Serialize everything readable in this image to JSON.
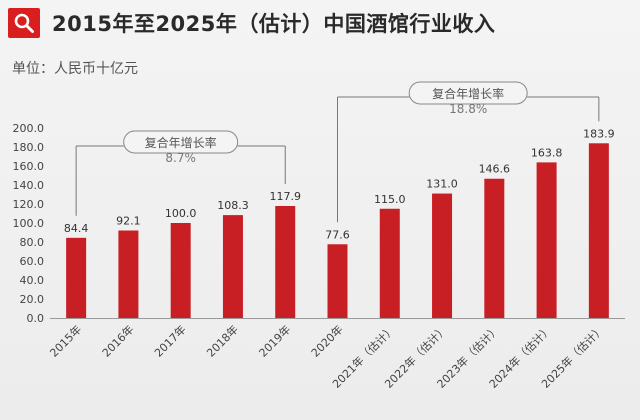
{
  "title": "2015年至2025年（估计）中国酒馆行业收入",
  "unit_label": "单位：人民币十亿元",
  "icons": {
    "logo": "search-icon"
  },
  "colors": {
    "bar": "#c81f25",
    "logo": "#d81e1e"
  },
  "cagr": [
    {
      "label": "复合年增长率",
      "value": "8.7%",
      "from_index": 0,
      "to_index": 4
    },
    {
      "label": "复合年增长率",
      "value": "18.8%",
      "from_index": 5,
      "to_index": 10
    }
  ],
  "chart_data": {
    "type": "bar",
    "title": "2015年至2025年（估计）中国酒馆行业收入",
    "ylabel": "单位：人民币十亿元",
    "xlabel": "",
    "categories": [
      "2015年",
      "2016年",
      "2017年",
      "2018年",
      "2019年",
      "2020年",
      "2021年（估计）",
      "2022年（估计）",
      "2023年（估计）",
      "2024年（估计）",
      "2025年（估计）"
    ],
    "values": [
      84.4,
      92.1,
      100.0,
      108.3,
      117.9,
      77.6,
      115.0,
      131.0,
      146.6,
      163.8,
      183.9
    ],
    "value_labels": [
      "84.4",
      "92.1",
      "100.0",
      "108.3",
      "117.9",
      "77.6",
      "115.0",
      "131.0",
      "146.6",
      "163.8",
      "183.9"
    ],
    "ylim": [
      0,
      200
    ],
    "yticks": [
      "0.0",
      "20.0",
      "40.0",
      "60.0",
      "80.0",
      "100.0",
      "120.0",
      "140.0",
      "160.0",
      "180.0",
      "200.0"
    ],
    "grid": false,
    "legend": "none"
  }
}
